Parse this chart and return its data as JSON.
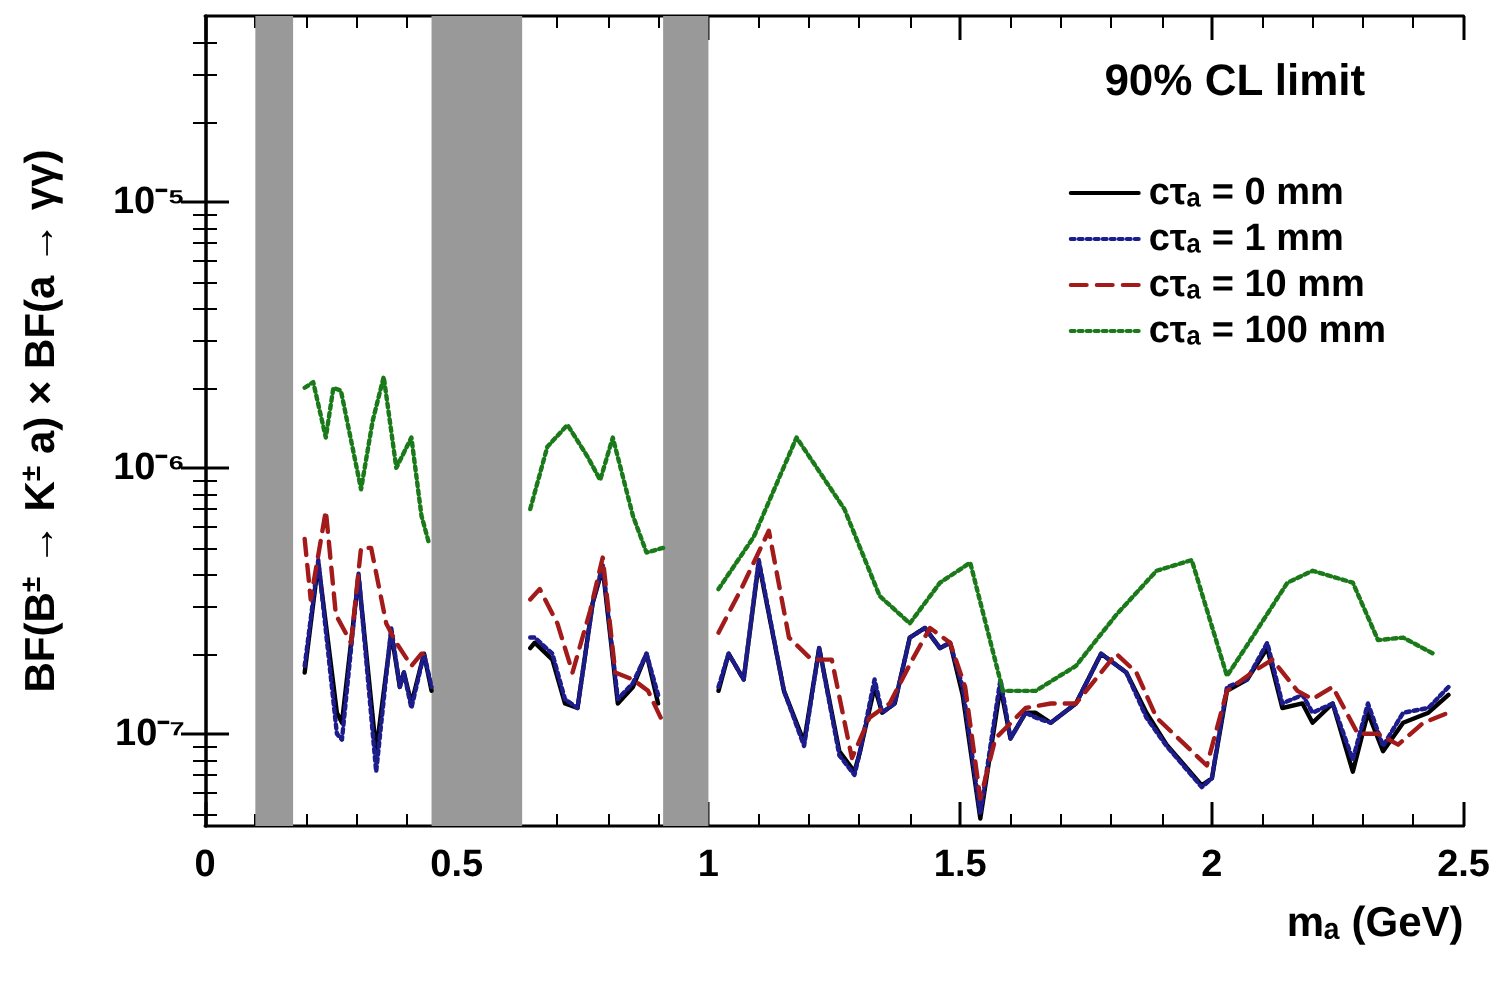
{
  "chart_data": {
    "type": "line",
    "xlabel": "mₐ (GeV)",
    "ylabel": "BF(B$^{±}$ → K$^{±}$ a) × BF(a → γγ)",
    "annotations": [
      "90% CL limit"
    ],
    "xlim": [
      0,
      2.5
    ],
    "xticks": [
      0,
      0.5,
      1,
      1.5,
      2,
      2.5
    ],
    "ylim": [
      4.5e-08,
      5e-05
    ],
    "yticks": [
      {
        "value": 1e-07,
        "label": "10⁻⁷"
      },
      {
        "value": 1e-06,
        "label": "10⁻⁶"
      },
      {
        "value": 1e-05,
        "label": "10⁻⁵"
      }
    ],
    "log": "y",
    "grid": false,
    "legend": "top right",
    "marker": "none",
    "bands": [
      {
        "axis": "x",
        "from": 0.1,
        "to": 0.175,
        "color": "#999999"
      },
      {
        "axis": "x",
        "from": 0.45,
        "to": 0.63,
        "color": "#999999"
      },
      {
        "axis": "x",
        "from": 0.91,
        "to": 1.0,
        "color": "#999999"
      }
    ],
    "series": [
      {
        "name": "cτₐ = 0 mm",
        "color": "#000000",
        "line_style": "solid",
        "x": [
          0.198,
          0.225,
          0.262,
          0.272,
          0.305,
          0.34,
          0.37,
          0.387,
          0.395,
          0.41,
          0.435,
          0.45,
          0.5,
          0.646,
          0.655,
          0.69,
          0.715,
          0.74,
          0.77,
          0.79,
          0.82,
          0.85,
          0.877,
          0.9,
          0.95,
          1.02,
          1.04,
          1.07,
          1.1,
          1.15,
          1.19,
          1.22,
          1.26,
          1.29,
          1.3,
          1.33,
          1.345,
          1.37,
          1.4,
          1.43,
          1.46,
          1.48,
          1.505,
          1.54,
          1.58,
          1.6,
          1.63,
          1.65,
          1.68,
          1.73,
          1.78,
          1.83,
          1.87,
          1.91,
          1.98,
          2.0,
          2.03,
          2.07,
          2.11,
          2.14,
          2.18,
          2.2,
          2.24,
          2.28,
          2.31,
          2.34,
          2.38,
          2.43,
          2.47
        ],
        "values": [
          1.7e-07,
          4.4e-07,
          1.2e-07,
          1.1e-07,
          3.9e-07,
          8.6e-08,
          2.4e-07,
          1.5e-07,
          1.7e-07,
          1.3e-07,
          2e-07,
          1.45e-07,
          null,
          2.1e-07,
          2.2e-07,
          1.9e-07,
          1.3e-07,
          1.25e-07,
          3.1e-07,
          4.2e-07,
          1.3e-07,
          1.5e-07,
          2e-07,
          1.3e-07,
          null,
          1.45e-07,
          2e-07,
          1.6e-07,
          4.4e-07,
          1.45e-07,
          9.3e-08,
          2.1e-07,
          8.6e-08,
          7.2e-08,
          8.4e-08,
          1.5e-07,
          1.2e-07,
          1.3e-07,
          2.3e-07,
          2.5e-07,
          2.1e-07,
          2.2e-07,
          1.4e-07,
          4.8e-08,
          1.5e-07,
          9.6e-08,
          1.2e-07,
          1.2e-07,
          1.1e-07,
          1.3e-07,
          2e-07,
          1.7e-07,
          1.2e-07,
          9.1e-08,
          6.4e-08,
          6.8e-08,
          1.45e-07,
          1.6e-07,
          2.1e-07,
          1.25e-07,
          1.3e-07,
          1.1e-07,
          1.3e-07,
          7.2e-08,
          1.2e-07,
          8.6e-08,
          1.1e-07,
          1.2e-07,
          1.4e-07
        ]
      },
      {
        "name": "cτₐ = 1 mm",
        "color": "#1c1c8c",
        "line_style": "dotted",
        "x": [
          0.198,
          0.225,
          0.262,
          0.272,
          0.305,
          0.34,
          0.37,
          0.387,
          0.395,
          0.41,
          0.435,
          0.45,
          0.5,
          0.646,
          0.655,
          0.69,
          0.715,
          0.74,
          0.77,
          0.79,
          0.82,
          0.85,
          0.877,
          0.9,
          0.95,
          1.02,
          1.04,
          1.07,
          1.1,
          1.15,
          1.19,
          1.22,
          1.26,
          1.29,
          1.3,
          1.33,
          1.345,
          1.37,
          1.4,
          1.43,
          1.46,
          1.48,
          1.505,
          1.54,
          1.58,
          1.6,
          1.63,
          1.65,
          1.68,
          1.73,
          1.78,
          1.83,
          1.87,
          1.91,
          1.98,
          2.0,
          2.03,
          2.07,
          2.11,
          2.14,
          2.18,
          2.2,
          2.24,
          2.28,
          2.31,
          2.34,
          2.38,
          2.43,
          2.47
        ],
        "values": [
          1.8e-07,
          4.5e-07,
          1e-07,
          9.5e-08,
          4e-07,
          7.2e-08,
          2.5e-07,
          1.5e-07,
          1.7e-07,
          1.25e-07,
          2e-07,
          1.5e-07,
          null,
          2.3e-07,
          2.3e-07,
          2e-07,
          1.35e-07,
          1.25e-07,
          3.1e-07,
          4.3e-07,
          1.35e-07,
          1.55e-07,
          2e-07,
          1.4e-07,
          null,
          1.5e-07,
          2e-07,
          1.6e-07,
          4.5e-07,
          1.45e-07,
          9e-08,
          2.1e-07,
          8.3e-08,
          7e-08,
          8.4e-08,
          1.6e-07,
          1.2e-07,
          1.3e-07,
          2.3e-07,
          2.5e-07,
          2.1e-07,
          2.2e-07,
          1.5e-07,
          5e-08,
          1.6e-07,
          9.6e-08,
          1.2e-07,
          1.15e-07,
          1.1e-07,
          1.3e-07,
          2e-07,
          1.7e-07,
          1.15e-07,
          9e-08,
          6.3e-08,
          6.8e-08,
          1.5e-07,
          1.6e-07,
          2.2e-07,
          1.3e-07,
          1.4e-07,
          1.2e-07,
          1.3e-07,
          8e-08,
          1.3e-07,
          9e-08,
          1.2e-07,
          1.25e-07,
          1.5e-07
        ]
      },
      {
        "name": "cτₐ = 10 mm",
        "color": "#a31a1a",
        "line_style": "dashed",
        "x": [
          0.198,
          0.21,
          0.24,
          0.26,
          0.29,
          0.31,
          0.33,
          0.36,
          0.38,
          0.41,
          0.43,
          0.45,
          0.5,
          0.646,
          0.665,
          0.7,
          0.73,
          0.765,
          0.79,
          0.815,
          0.85,
          0.88,
          0.91,
          0.95,
          1.02,
          1.065,
          1.12,
          1.16,
          1.205,
          1.245,
          1.285,
          1.32,
          1.36,
          1.405,
          1.44,
          1.48,
          1.51,
          1.54,
          1.57,
          1.63,
          1.68,
          1.73,
          1.81,
          1.85,
          1.89,
          1.99,
          2.03,
          2.08,
          2.12,
          2.17,
          2.2,
          2.24,
          2.29,
          2.33,
          2.37,
          2.42,
          2.47
        ],
        "values": [
          5.4e-07,
          3.2e-07,
          6.9e-07,
          2.8e-07,
          2.2e-07,
          5e-07,
          5e-07,
          2.6e-07,
          2.2e-07,
          1.8e-07,
          2e-07,
          2e-07,
          null,
          3.2e-07,
          3.5e-07,
          2.6e-07,
          1.7e-07,
          2.9e-07,
          4.6e-07,
          1.7e-07,
          1.6e-07,
          1.45e-07,
          1.1e-07,
          null,
          2.4e-07,
          3.5e-07,
          5.8e-07,
          2.3e-07,
          1.9e-07,
          1.9e-07,
          8.1e-08,
          1.15e-07,
          1.3e-07,
          1.9e-07,
          2.5e-07,
          2.2e-07,
          1.5e-07,
          5.7e-08,
          9.6e-08,
          1.25e-07,
          1.3e-07,
          1.3e-07,
          2e-07,
          1.7e-07,
          1.15e-07,
          7.6e-08,
          1.45e-07,
          1.7e-07,
          1.9e-07,
          1.45e-07,
          1.35e-07,
          1.5e-07,
          1e-07,
          1e-07,
          9.1e-08,
          1.1e-07,
          1.2e-07
        ]
      },
      {
        "name": "cτₐ = 100 mm",
        "color": "#1a7a1a",
        "line_style": "dotted",
        "x": [
          0.198,
          0.215,
          0.24,
          0.255,
          0.27,
          0.31,
          0.333,
          0.355,
          0.38,
          0.41,
          0.43,
          0.445,
          0.5,
          0.646,
          0.68,
          0.72,
          0.76,
          0.785,
          0.81,
          0.85,
          0.877,
          0.91,
          0.95,
          1.02,
          1.09,
          1.175,
          1.27,
          1.34,
          1.4,
          1.46,
          1.52,
          1.585,
          1.65,
          1.73,
          1.81,
          1.89,
          1.96,
          2.03,
          2.08,
          2.15,
          2.2,
          2.28,
          2.33,
          2.38,
          2.44
        ],
        "values": [
          2e-06,
          2.1e-06,
          1.3e-06,
          2e-06,
          1.95e-06,
          8.3e-07,
          1.5e-06,
          2.2e-06,
          1e-06,
          1.3e-06,
          6.6e-07,
          5.2e-07,
          null,
          7e-07,
          1.2e-06,
          1.45e-06,
          1.1e-06,
          9e-07,
          1.3e-06,
          6.6e-07,
          4.8e-07,
          5e-07,
          null,
          3.5e-07,
          5.5e-07,
          1.3e-06,
          7e-07,
          3.3e-07,
          2.6e-07,
          3.7e-07,
          4.4e-07,
          1.45e-07,
          1.45e-07,
          1.8e-07,
          2.8e-07,
          4.1e-07,
          4.5e-07,
          1.65e-07,
          2.3e-07,
          3.7e-07,
          4.1e-07,
          3.7e-07,
          2.25e-07,
          2.3e-07,
          2e-07
        ]
      }
    ]
  }
}
